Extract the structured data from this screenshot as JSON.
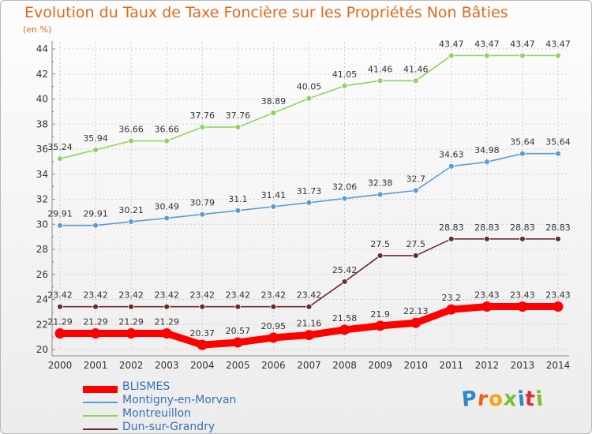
{
  "title": "Evolution du Taux de Taxe Foncière sur les Propriétés Non Bâties",
  "subtitle": "(en %)",
  "logo_text": "Proxiti",
  "chart_data": {
    "type": "line",
    "title": "Evolution du Taux de Taxe Foncière sur les Propriétés Non Bâties",
    "ylabel": "(en %)",
    "xlabel": "",
    "x": [
      "2000",
      "2001",
      "2002",
      "2003",
      "2004",
      "2005",
      "2006",
      "2007",
      "2008",
      "2009",
      "2010",
      "2011",
      "2012",
      "2013",
      "2014"
    ],
    "ylim": [
      20,
      44
    ],
    "yticks": [
      "20",
      "22",
      "24",
      "26",
      "28",
      "30",
      "32",
      "34",
      "36",
      "38",
      "40",
      "42",
      "44"
    ],
    "grid": true,
    "legend": "bottom-left",
    "series": [
      {
        "name": "BLISMES",
        "color": "#ff0000",
        "values": [
          21.29,
          21.29,
          21.29,
          21.29,
          20.37,
          20.57,
          20.95,
          21.16,
          21.58,
          21.9,
          22.13,
          23.2,
          23.43,
          23.43,
          23.43
        ],
        "labels": [
          "21.29",
          "21.29",
          "21.29",
          "21.29",
          "20.37",
          "20.57",
          "20.95",
          "21.16",
          "21.58",
          "21.9",
          "22.13",
          "23.2",
          "23.43",
          "23.43",
          "23.43"
        ]
      },
      {
        "name": "Montigny-en-Morvan",
        "color": "#5b9bd5",
        "values": [
          29.91,
          29.91,
          30.21,
          30.49,
          30.79,
          31.1,
          31.41,
          31.73,
          32.06,
          32.38,
          32.7,
          34.63,
          34.98,
          35.64,
          35.64
        ],
        "labels": [
          "29.91",
          "29.91",
          "30.21",
          "30.49",
          "30.79",
          "31.1",
          "31.41",
          "31.73",
          "32.06",
          "32.38",
          "32.7",
          "34.63",
          "34.98",
          "35.64",
          "35.64"
        ]
      },
      {
        "name": "Montreuillon",
        "color": "#8fd35f",
        "values": [
          35.24,
          35.94,
          36.66,
          36.66,
          37.76,
          37.76,
          38.89,
          40.05,
          41.05,
          41.46,
          41.46,
          43.47,
          43.47,
          43.47,
          43.47
        ],
        "labels": [
          "35.24",
          "35.94",
          "36.66",
          "36.66",
          "37.76",
          "37.76",
          "38.89",
          "40.05",
          "41.05",
          "41.46",
          "41.46",
          "43.47",
          "43.47",
          "43.47",
          "43.47"
        ]
      },
      {
        "name": "Dun-sur-Grandry",
        "color": "#6b2a2a",
        "values": [
          23.42,
          23.42,
          23.42,
          23.42,
          23.42,
          23.42,
          23.42,
          23.42,
          25.42,
          27.5,
          27.5,
          28.83,
          28.83,
          28.83,
          28.83
        ],
        "labels": [
          "23.42",
          "23.42",
          "23.42",
          "23.42",
          "23.42",
          "23.42",
          "23.42",
          "23.42",
          "25.42",
          "27.5",
          "27.5",
          "28.83",
          "28.83",
          "28.83",
          "28.83"
        ]
      }
    ]
  }
}
